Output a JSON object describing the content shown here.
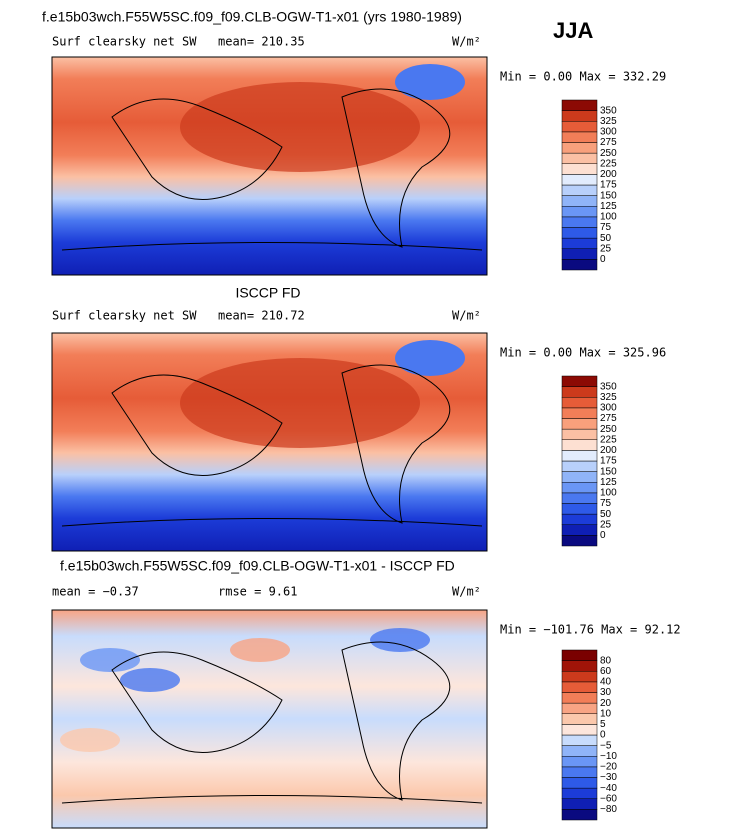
{
  "season": "JJA",
  "panels": [
    {
      "title": "f.e15b03wch.F55W5SC.f09_f09.CLB-OGW-T1-x01 (yrs 1980-1989)",
      "variable": "Surf clearsky net SW",
      "stat1": "mean= 210.35",
      "units": "W/m²",
      "range": "Min =   0.00 Max = 332.29",
      "colorbar": {
        "labels": [
          "0",
          "25",
          "50",
          "75",
          "100",
          "125",
          "150",
          "175",
          "200",
          "225",
          "250",
          "275",
          "300",
          "325",
          "350"
        ],
        "colors": [
          "#0a0a80",
          "#0f1fb4",
          "#1c3cd8",
          "#2e5ae8",
          "#4a78f0",
          "#6a96f5",
          "#90b4f8",
          "#b8d0fb",
          "#e2ecfd",
          "#fde0d2",
          "#fbc0a4",
          "#f8a07c",
          "#f27e58",
          "#e65c38",
          "#cc3a1c",
          "#8c0a04"
        ]
      }
    },
    {
      "title": "ISCCP FD",
      "variable": "Surf clearsky net SW",
      "stat1": "mean= 210.72",
      "units": "W/m²",
      "range": "Min =   0.00 Max = 325.96",
      "colorbar": {
        "labels": [
          "0",
          "25",
          "50",
          "75",
          "100",
          "125",
          "150",
          "175",
          "200",
          "225",
          "250",
          "275",
          "300",
          "325",
          "350"
        ],
        "colors": [
          "#0a0a80",
          "#0f1fb4",
          "#1c3cd8",
          "#2e5ae8",
          "#4a78f0",
          "#6a96f5",
          "#90b4f8",
          "#b8d0fb",
          "#e2ecfd",
          "#fde0d2",
          "#fbc0a4",
          "#f8a07c",
          "#f27e58",
          "#e65c38",
          "#cc3a1c",
          "#8c0a04"
        ]
      }
    },
    {
      "title": "f.e15b03wch.F55W5SC.f09_f09.CLB-OGW-T1-x01 - ISCCP FD",
      "variable": "mean =  −0.37",
      "stat1": "rmse =   9.61",
      "units": "W/m²",
      "range": "Min = −101.76 Max =  92.12",
      "colorbar": {
        "labels": [
          "−80",
          "−60",
          "−40",
          "−30",
          "−20",
          "−10",
          "−5",
          "0",
          "5",
          "10",
          "20",
          "30",
          "40",
          "60",
          "80"
        ],
        "colors": [
          "#0a0a80",
          "#0f1fb4",
          "#1c3cd8",
          "#2e5ae8",
          "#4a78f0",
          "#6a96f5",
          "#90b4f8",
          "#c8dcfc",
          "#fde6dc",
          "#fbc8ac",
          "#f8a484",
          "#f27e58",
          "#e65c38",
          "#cc3a1c",
          "#a01408",
          "#7a0000"
        ]
      }
    }
  ]
}
